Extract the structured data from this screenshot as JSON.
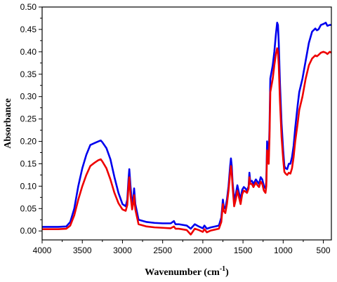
{
  "chart_data": {
    "type": "line",
    "title": "",
    "xlabel": "Wavenumber (cm",
    "xlabel_superscript": "-1",
    "xlabel_close": ")",
    "ylabel": "Absorbance",
    "xlim": [
      4000,
      400
    ],
    "ylim": [
      -0.02,
      0.5
    ],
    "x_reversed": true,
    "x_ticks": [
      4000,
      3500,
      3000,
      2500,
      2000,
      1500,
      1000,
      500
    ],
    "y_ticks": [
      "0.00",
      "0.05",
      "0.10",
      "0.15",
      "0.20",
      "0.25",
      "0.30",
      "0.35",
      "0.40",
      "0.45",
      "0.50"
    ],
    "grid": false,
    "legend": "none",
    "series": [
      {
        "color": "#0000ee",
        "points": [
          [
            4000,
            0.009
          ],
          [
            3800,
            0.009
          ],
          [
            3700,
            0.01
          ],
          [
            3650,
            0.02
          ],
          [
            3600,
            0.05
          ],
          [
            3550,
            0.1
          ],
          [
            3500,
            0.14
          ],
          [
            3450,
            0.17
          ],
          [
            3400,
            0.192
          ],
          [
            3350,
            0.196
          ],
          [
            3300,
            0.2
          ],
          [
            3270,
            0.202
          ],
          [
            3250,
            0.198
          ],
          [
            3200,
            0.185
          ],
          [
            3150,
            0.16
          ],
          [
            3100,
            0.12
          ],
          [
            3050,
            0.085
          ],
          [
            3000,
            0.06
          ],
          [
            2960,
            0.055
          ],
          [
            2940,
            0.07
          ],
          [
            2925,
            0.115
          ],
          [
            2915,
            0.138
          ],
          [
            2900,
            0.1
          ],
          [
            2880,
            0.058
          ],
          [
            2865,
            0.075
          ],
          [
            2855,
            0.095
          ],
          [
            2840,
            0.06
          ],
          [
            2800,
            0.025
          ],
          [
            2700,
            0.02
          ],
          [
            2600,
            0.018
          ],
          [
            2500,
            0.017
          ],
          [
            2400,
            0.017
          ],
          [
            2360,
            0.022
          ],
          [
            2340,
            0.015
          ],
          [
            2300,
            0.015
          ],
          [
            2200,
            0.012
          ],
          [
            2150,
            0.005
          ],
          [
            2100,
            0.015
          ],
          [
            2050,
            0.01
          ],
          [
            2000,
            0.006
          ],
          [
            1980,
            0.012
          ],
          [
            1950,
            0.005
          ],
          [
            1900,
            0.008
          ],
          [
            1850,
            0.01
          ],
          [
            1800,
            0.012
          ],
          [
            1770,
            0.03
          ],
          [
            1750,
            0.07
          ],
          [
            1740,
            0.055
          ],
          [
            1720,
            0.05
          ],
          [
            1700,
            0.07
          ],
          [
            1680,
            0.1
          ],
          [
            1660,
            0.145
          ],
          [
            1650,
            0.162
          ],
          [
            1640,
            0.145
          ],
          [
            1630,
            0.11
          ],
          [
            1610,
            0.07
          ],
          [
            1590,
            0.082
          ],
          [
            1570,
            0.102
          ],
          [
            1550,
            0.085
          ],
          [
            1530,
            0.07
          ],
          [
            1510,
            0.092
          ],
          [
            1490,
            0.098
          ],
          [
            1470,
            0.095
          ],
          [
            1450,
            0.09
          ],
          [
            1430,
            0.1
          ],
          [
            1420,
            0.13
          ],
          [
            1410,
            0.11
          ],
          [
            1390,
            0.112
          ],
          [
            1370,
            0.105
          ],
          [
            1340,
            0.115
          ],
          [
            1320,
            0.11
          ],
          [
            1300,
            0.105
          ],
          [
            1280,
            0.12
          ],
          [
            1260,
            0.115
          ],
          [
            1240,
            0.1
          ],
          [
            1220,
            0.095
          ],
          [
            1210,
            0.11
          ],
          [
            1200,
            0.2
          ],
          [
            1190,
            0.18
          ],
          [
            1180,
            0.165
          ],
          [
            1170,
            0.23
          ],
          [
            1160,
            0.34
          ],
          [
            1150,
            0.35
          ],
          [
            1130,
            0.37
          ],
          [
            1110,
            0.4
          ],
          [
            1090,
            0.44
          ],
          [
            1075,
            0.465
          ],
          [
            1065,
            0.46
          ],
          [
            1055,
            0.42
          ],
          [
            1040,
            0.33
          ],
          [
            1020,
            0.24
          ],
          [
            1000,
            0.18
          ],
          [
            985,
            0.145
          ],
          [
            970,
            0.14
          ],
          [
            950,
            0.138
          ],
          [
            930,
            0.15
          ],
          [
            910,
            0.15
          ],
          [
            890,
            0.165
          ],
          [
            870,
            0.19
          ],
          [
            850,
            0.23
          ],
          [
            820,
            0.28
          ],
          [
            800,
            0.31
          ],
          [
            760,
            0.34
          ],
          [
            720,
            0.38
          ],
          [
            680,
            0.42
          ],
          [
            640,
            0.445
          ],
          [
            600,
            0.452
          ],
          [
            580,
            0.448
          ],
          [
            560,
            0.45
          ],
          [
            530,
            0.46
          ],
          [
            500,
            0.462
          ],
          [
            470,
            0.465
          ],
          [
            450,
            0.458
          ],
          [
            420,
            0.46
          ],
          [
            400,
            0.46
          ]
        ]
      },
      {
        "color": "#ee0000",
        "points": [
          [
            4000,
            0.004
          ],
          [
            3800,
            0.004
          ],
          [
            3700,
            0.005
          ],
          [
            3650,
            0.012
          ],
          [
            3600,
            0.035
          ],
          [
            3550,
            0.07
          ],
          [
            3500,
            0.1
          ],
          [
            3450,
            0.125
          ],
          [
            3400,
            0.145
          ],
          [
            3350,
            0.152
          ],
          [
            3300,
            0.158
          ],
          [
            3270,
            0.16
          ],
          [
            3250,
            0.155
          ],
          [
            3200,
            0.14
          ],
          [
            3150,
            0.115
          ],
          [
            3100,
            0.085
          ],
          [
            3050,
            0.062
          ],
          [
            3000,
            0.048
          ],
          [
            2960,
            0.045
          ],
          [
            2940,
            0.058
          ],
          [
            2925,
            0.1
          ],
          [
            2915,
            0.12
          ],
          [
            2900,
            0.08
          ],
          [
            2880,
            0.048
          ],
          [
            2865,
            0.062
          ],
          [
            2855,
            0.08
          ],
          [
            2840,
            0.048
          ],
          [
            2800,
            0.015
          ],
          [
            2700,
            0.01
          ],
          [
            2600,
            0.008
          ],
          [
            2500,
            0.007
          ],
          [
            2400,
            0.006
          ],
          [
            2360,
            0.01
          ],
          [
            2340,
            0.005
          ],
          [
            2300,
            0.005
          ],
          [
            2200,
            0.002
          ],
          [
            2150,
            -0.008
          ],
          [
            2100,
            0.005
          ],
          [
            2050,
            0.002
          ],
          [
            2000,
            -0.002
          ],
          [
            1980,
            0.004
          ],
          [
            1950,
            -0.003
          ],
          [
            1900,
            0.001
          ],
          [
            1850,
            0.003
          ],
          [
            1800,
            0.005
          ],
          [
            1770,
            0.02
          ],
          [
            1750,
            0.06
          ],
          [
            1740,
            0.045
          ],
          [
            1720,
            0.04
          ],
          [
            1700,
            0.06
          ],
          [
            1680,
            0.09
          ],
          [
            1660,
            0.13
          ],
          [
            1650,
            0.145
          ],
          [
            1640,
            0.13
          ],
          [
            1630,
            0.1
          ],
          [
            1610,
            0.055
          ],
          [
            1590,
            0.07
          ],
          [
            1570,
            0.09
          ],
          [
            1550,
            0.075
          ],
          [
            1530,
            0.06
          ],
          [
            1510,
            0.082
          ],
          [
            1490,
            0.09
          ],
          [
            1470,
            0.088
          ],
          [
            1450,
            0.085
          ],
          [
            1430,
            0.095
          ],
          [
            1420,
            0.12
          ],
          [
            1410,
            0.105
          ],
          [
            1390,
            0.105
          ],
          [
            1370,
            0.098
          ],
          [
            1340,
            0.108
          ],
          [
            1320,
            0.102
          ],
          [
            1300,
            0.098
          ],
          [
            1280,
            0.11
          ],
          [
            1260,
            0.105
          ],
          [
            1240,
            0.09
          ],
          [
            1220,
            0.085
          ],
          [
            1210,
            0.1
          ],
          [
            1200,
            0.18
          ],
          [
            1190,
            0.16
          ],
          [
            1180,
            0.15
          ],
          [
            1170,
            0.21
          ],
          [
            1160,
            0.31
          ],
          [
            1150,
            0.32
          ],
          [
            1130,
            0.34
          ],
          [
            1110,
            0.37
          ],
          [
            1090,
            0.395
          ],
          [
            1075,
            0.408
          ],
          [
            1065,
            0.4
          ],
          [
            1055,
            0.37
          ],
          [
            1040,
            0.29
          ],
          [
            1020,
            0.21
          ],
          [
            1000,
            0.16
          ],
          [
            985,
            0.132
          ],
          [
            970,
            0.128
          ],
          [
            950,
            0.125
          ],
          [
            930,
            0.13
          ],
          [
            910,
            0.128
          ],
          [
            890,
            0.14
          ],
          [
            870,
            0.165
          ],
          [
            850,
            0.2
          ],
          [
            820,
            0.24
          ],
          [
            800,
            0.27
          ],
          [
            760,
            0.3
          ],
          [
            720,
            0.34
          ],
          [
            680,
            0.37
          ],
          [
            640,
            0.385
          ],
          [
            600,
            0.392
          ],
          [
            580,
            0.39
          ],
          [
            560,
            0.393
          ],
          [
            530,
            0.398
          ],
          [
            500,
            0.4
          ],
          [
            470,
            0.398
          ],
          [
            450,
            0.395
          ],
          [
            420,
            0.4
          ],
          [
            400,
            0.398
          ]
        ]
      }
    ]
  }
}
